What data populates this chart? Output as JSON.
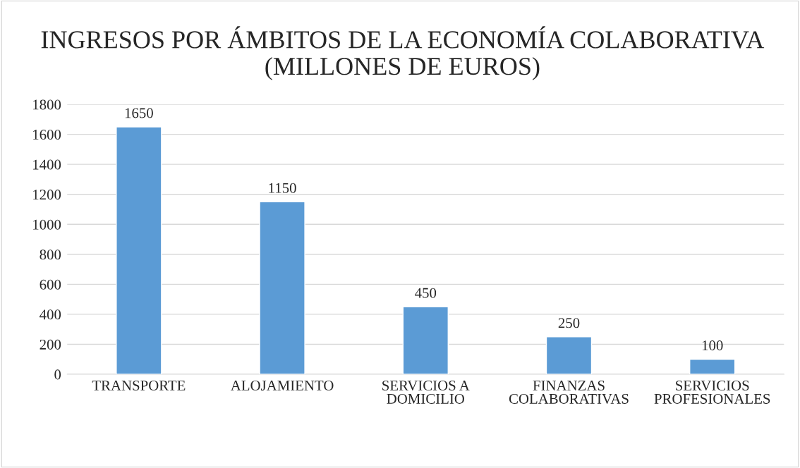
{
  "chart_data": {
    "type": "bar",
    "title": "INGRESOS POR ÁMBITOS DE LA ECONOMÍA COLABORATIVA (MILLONES DE EUROS)",
    "categories": [
      "TRANSPORTE",
      "ALOJAMIENTO",
      "SERVICIOS A\nDOMICILIO",
      "FINANZAS\nCOLABORATIVAS",
      "SERVICIOS\nPROFESIONALES"
    ],
    "values": [
      1650,
      1150,
      450,
      250,
      100
    ],
    "color": "#5b9bd5",
    "ylim": [
      0,
      1800
    ],
    "yticks": [
      0,
      200,
      400,
      600,
      800,
      1000,
      1200,
      1400,
      1600,
      1800
    ],
    "grid": "y",
    "data_labels": true,
    "legend": false
  }
}
